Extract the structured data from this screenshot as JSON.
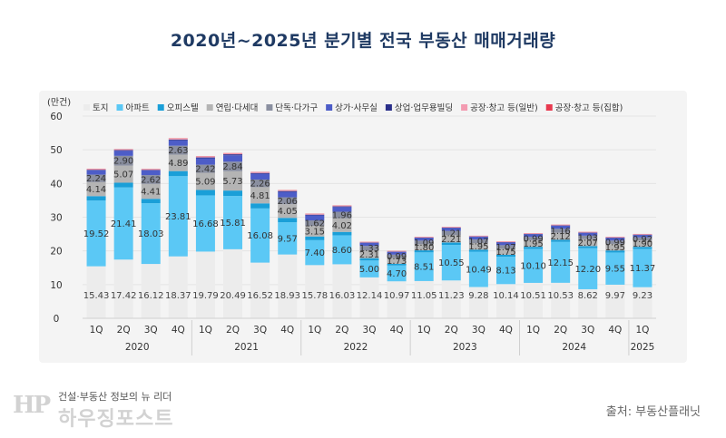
{
  "page": {
    "title": "2020년~2025년 분기별 전국 부동산 매매거래량",
    "logo_tagline": "건설·부동산 정보의 뉴 리더",
    "logo_mark": "HP",
    "logo_name": "하우징포스트",
    "source": "출처: 부동산플래닛"
  },
  "chart_data": {
    "type": "bar",
    "stacked": true,
    "title": "2020년~2025년 분기별 전국 부동산 매매거래량",
    "ylabel": "(만건)",
    "ylim": [
      0,
      60
    ],
    "yticks": [
      0,
      10,
      20,
      30,
      40,
      50,
      60
    ],
    "categories": [
      "1Q",
      "2Q",
      "3Q",
      "4Q",
      "1Q",
      "2Q",
      "3Q",
      "4Q",
      "1Q",
      "2Q",
      "3Q",
      "4Q",
      "1Q",
      "2Q",
      "3Q",
      "4Q",
      "1Q",
      "2Q",
      "3Q",
      "4Q",
      "1Q"
    ],
    "groups": [
      {
        "label": "2020",
        "count": 4
      },
      {
        "label": "2021",
        "count": 4
      },
      {
        "label": "2022",
        "count": 4
      },
      {
        "label": "2023",
        "count": 4
      },
      {
        "label": "2024",
        "count": 4
      },
      {
        "label": "2025",
        "count": 1
      }
    ],
    "series": [
      {
        "name": "토지",
        "color": "#ececec",
        "values": [
          15.43,
          17.42,
          16.12,
          18.37,
          19.79,
          20.49,
          16.52,
          18.93,
          15.78,
          16.03,
          12.14,
          10.97,
          11.05,
          11.23,
          9.28,
          10.14,
          10.51,
          10.53,
          8.62,
          9.97,
          9.23
        ]
      },
      {
        "name": "아파트",
        "color": "#5bc8f5",
        "values": [
          19.52,
          21.41,
          18.03,
          23.81,
          16.68,
          15.81,
          16.08,
          9.57,
          7.4,
          8.6,
          5.0,
          4.7,
          8.51,
          10.55,
          10.49,
          8.13,
          10.1,
          12.15,
          12.2,
          9.55,
          11.37
        ]
      },
      {
        "name": "오피스텔",
        "color": "#1a9fd8",
        "values": [
          1.3,
          1.4,
          1.3,
          1.5,
          1.6,
          1.6,
          1.5,
          1.3,
          1.1,
          1.0,
          0.7,
          0.5,
          0.6,
          0.7,
          0.6,
          0.6,
          0.6,
          0.6,
          0.6,
          0.6,
          0.6
        ]
      },
      {
        "name": "연립·다세대",
        "color": "#b4b4b4",
        "values": [
          4.14,
          5.07,
          4.41,
          4.89,
          5.09,
          5.73,
          4.81,
          4.05,
          3.15,
          4.02,
          2.31,
          1.73,
          1.8,
          2.21,
          1.95,
          1.75,
          1.95,
          2.12,
          2.07,
          1.95,
          1.9
        ]
      },
      {
        "name": "단독·다가구",
        "color": "#8a8fa0",
        "values": [
          2.24,
          2.9,
          2.62,
          2.63,
          2.42,
          2.84,
          2.26,
          2.06,
          1.62,
          1.96,
          1.33,
          0.99,
          1.09,
          1.21,
          1.07,
          1.07,
          0.99,
          1.16,
          1.03,
          0.99,
          0.92
        ]
      },
      {
        "name": "상가·사무실",
        "color": "#4d5dc8",
        "values": [
          1.3,
          1.5,
          1.4,
          1.6,
          1.9,
          1.9,
          1.7,
          1.6,
          1.5,
          1.4,
          0.9,
          0.8,
          0.8,
          0.9,
          0.8,
          0.8,
          0.8,
          0.9,
          0.8,
          0.8,
          0.7
        ]
      },
      {
        "name": "상업·업무용빌딩",
        "color": "#2a2f8a",
        "values": [
          0.15,
          0.2,
          0.15,
          0.25,
          0.25,
          0.3,
          0.25,
          0.25,
          0.2,
          0.2,
          0.1,
          0.1,
          0.1,
          0.1,
          0.1,
          0.1,
          0.1,
          0.1,
          0.1,
          0.1,
          0.1
        ]
      },
      {
        "name": "공장·창고 등(일반)",
        "color": "#f39bb1",
        "values": [
          0.2,
          0.2,
          0.2,
          0.25,
          0.25,
          0.25,
          0.2,
          0.2,
          0.2,
          0.2,
          0.15,
          0.15,
          0.15,
          0.15,
          0.15,
          0.15,
          0.15,
          0.15,
          0.15,
          0.15,
          0.15
        ]
      },
      {
        "name": "공장·창고 등(집합)",
        "color": "#e8394f",
        "values": [
          0.08,
          0.08,
          0.08,
          0.1,
          0.1,
          0.1,
          0.08,
          0.08,
          0.08,
          0.08,
          0.06,
          0.06,
          0.06,
          0.06,
          0.06,
          0.06,
          0.06,
          0.06,
          0.06,
          0.06,
          0.06
        ]
      }
    ],
    "data_labels": [
      {
        "series": 0,
        "labels": [
          "15.43",
          "17.42",
          "16.12",
          "18.37",
          "19.79",
          "20.49",
          "16.52",
          "18.93",
          "15.78",
          "16.03",
          "12.14",
          "10.97",
          "11.05",
          "11.23",
          "9.28",
          "10.14",
          "10.51",
          "10.53",
          "8.62",
          "9.97",
          "9.23"
        ]
      },
      {
        "series": 1,
        "labels": [
          "19.52",
          "21.41",
          "18.03",
          "23.81",
          "16.68",
          "15.81",
          "16.08",
          "9.57",
          "7.40",
          "8.60",
          "5.00",
          "4.70",
          "8.51",
          "10.55",
          "10.49",
          "8.13",
          "10.10",
          "12.15",
          "12.20",
          "9.55",
          "11.37"
        ]
      },
      {
        "series": 3,
        "labels": [
          "4.14",
          "5.07",
          "4.41",
          "4.89",
          "5.09",
          "5.73",
          "4.81",
          "4.05",
          "3.15",
          "4.02",
          "2.31",
          "1.73",
          "1.80",
          "2.21",
          "1.95",
          "1.75",
          "1.95",
          "2.12",
          "2.07",
          "1.95",
          "1.90"
        ]
      },
      {
        "series": 4,
        "labels": [
          "2.24",
          "2.90",
          "2.62",
          "2.63",
          "2.42",
          "2.84",
          "2.26",
          "2.06",
          "1.62",
          "1.96",
          "1.33",
          "0.99",
          "1.09",
          "1.21",
          "1.07",
          "1.07",
          "0.99",
          "1.16",
          "1.03",
          "0.99",
          "0.92"
        ]
      }
    ]
  }
}
